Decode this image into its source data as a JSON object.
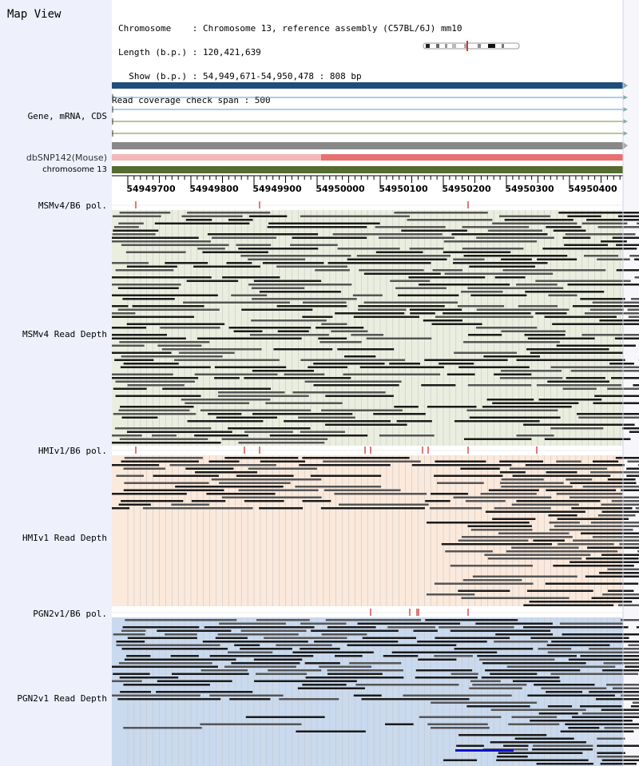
{
  "sidebar": {
    "title": "Map View",
    "track_labels": {
      "genes": "Gene, mRNA, CDS",
      "snp": "dbSNP142(Mouse)",
      "chromosome": "chromosome 13",
      "msm_pol": "MSMv4/B6 pol.",
      "msm_depth": "MSMv4 Read Depth",
      "hmi_pol": "HMIv1/B6 pol.",
      "hmi_depth": "HMIv1 Read Depth",
      "pgn_pol": "PGN2v1/B6 pol.",
      "pgn_depth": "PGN2v1 Read Depth"
    }
  },
  "info": {
    "line1": "Chromosome    : Chromosome 13, reference assembly (C57BL/6J) mm10",
    "line2": "Length (b.p.) : 120,421,639",
    "line3": "  Show (b.p.) : 54,949,671-54,950,478 : 808 bp",
    "line4": "Read coverage check span : 500"
  },
  "axis": {
    "ticks": [
      "54949700",
      "54949800",
      "54949900",
      "54950000",
      "54950100",
      "54950200",
      "54950300",
      "54950400"
    ]
  },
  "colors": {
    "gene_dark": "#1f4e7a",
    "gene_line": "#5b9bd5",
    "snp_light": "#f4b6b6",
    "snp_dark": "#e97070",
    "chromosome_bar": "#556b2f",
    "msm_bg": "#eaeedf",
    "hmi_bg": "#fbe9dc",
    "pgn_bg": "#c9d9ee",
    "read_dark": "#1a1a1a",
    "read_mid": "#555555",
    "highlight_read": "#1010cc",
    "pol_mark": "#cc2222"
  }
}
